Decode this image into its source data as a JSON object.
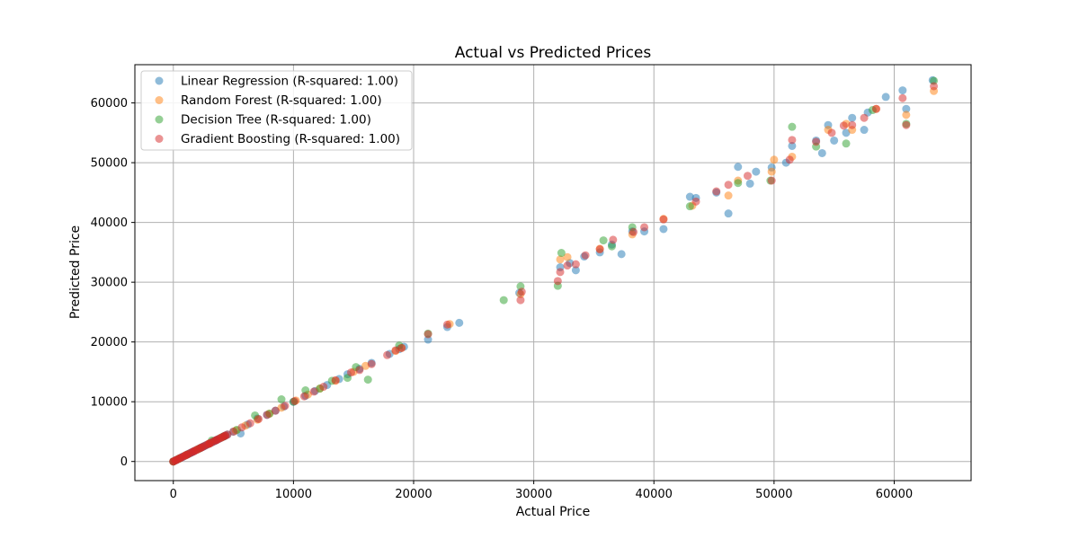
{
  "chart_data": {
    "type": "scatter",
    "title": "Actual vs Predicted Prices",
    "xlabel": "Actual Price",
    "ylabel": "Predicted Price",
    "xlim": [
      -3200,
      66400
    ],
    "ylim": [
      -3200,
      66400
    ],
    "xticks": [
      0,
      10000,
      20000,
      30000,
      40000,
      50000,
      60000
    ],
    "yticks": [
      0,
      10000,
      20000,
      30000,
      40000,
      50000,
      60000
    ],
    "grid": true,
    "legend_position": "top-left",
    "series": [
      {
        "name": "Linear Regression (R-squared: 1.00)",
        "color": "#1f77b4",
        "points": [
          [
            0,
            0
          ],
          [
            300,
            300
          ],
          [
            800,
            800
          ],
          [
            1500,
            1500
          ],
          [
            2500,
            2500
          ],
          [
            3500,
            3500
          ],
          [
            4200,
            4200
          ],
          [
            5000,
            5000
          ],
          [
            5600,
            4700
          ],
          [
            6200,
            6200
          ],
          [
            7000,
            7200
          ],
          [
            7800,
            7800
          ],
          [
            8500,
            8500
          ],
          [
            9200,
            9200
          ],
          [
            10000,
            10000
          ],
          [
            11000,
            11000
          ],
          [
            11800,
            11800
          ],
          [
            12800,
            12800
          ],
          [
            13800,
            13800
          ],
          [
            14500,
            14600
          ],
          [
            15500,
            15500
          ],
          [
            16500,
            16500
          ],
          [
            18000,
            18000
          ],
          [
            18800,
            18800
          ],
          [
            19200,
            19200
          ],
          [
            21200,
            20400
          ],
          [
            22800,
            22500
          ],
          [
            23800,
            23200
          ],
          [
            28800,
            28200
          ],
          [
            32200,
            32500
          ],
          [
            33000,
            33200
          ],
          [
            33500,
            32000
          ],
          [
            34200,
            34300
          ],
          [
            35500,
            35000
          ],
          [
            36500,
            36300
          ],
          [
            37300,
            34700
          ],
          [
            38200,
            38500
          ],
          [
            39200,
            38500
          ],
          [
            40800,
            38900
          ],
          [
            43000,
            44300
          ],
          [
            43500,
            44100
          ],
          [
            45200,
            45000
          ],
          [
            46200,
            41500
          ],
          [
            47000,
            49300
          ],
          [
            48000,
            46500
          ],
          [
            48500,
            48500
          ],
          [
            49800,
            49200
          ],
          [
            51000,
            50000
          ],
          [
            51500,
            52800
          ],
          [
            53500,
            53700
          ],
          [
            54000,
            51600
          ],
          [
            54500,
            56300
          ],
          [
            55000,
            53700
          ],
          [
            56000,
            55000
          ],
          [
            56500,
            57500
          ],
          [
            57500,
            55500
          ],
          [
            57800,
            58400
          ],
          [
            59300,
            61000
          ],
          [
            60700,
            62100
          ],
          [
            61000,
            59000
          ],
          [
            63200,
            63800
          ]
        ]
      },
      {
        "name": "Random Forest (R-squared: 1.00)",
        "color": "#ff7f0e",
        "points": [
          [
            0,
            0
          ],
          [
            400,
            400
          ],
          [
            1000,
            1000
          ],
          [
            2000,
            2000
          ],
          [
            3000,
            3000
          ],
          [
            4000,
            4000
          ],
          [
            5200,
            5200
          ],
          [
            6000,
            6000
          ],
          [
            7000,
            7000
          ],
          [
            8000,
            8000
          ],
          [
            9000,
            9000
          ],
          [
            10200,
            10200
          ],
          [
            11200,
            11200
          ],
          [
            12200,
            12200
          ],
          [
            13500,
            13500
          ],
          [
            15000,
            15000
          ],
          [
            16000,
            16000
          ],
          [
            18500,
            18500
          ],
          [
            19000,
            19000
          ],
          [
            23000,
            23000
          ],
          [
            28900,
            28000
          ],
          [
            32200,
            33800
          ],
          [
            32800,
            34200
          ],
          [
            35500,
            35600
          ],
          [
            38200,
            38000
          ],
          [
            40800,
            40600
          ],
          [
            43200,
            42800
          ],
          [
            46200,
            44500
          ],
          [
            47000,
            47000
          ],
          [
            49800,
            48500
          ],
          [
            50000,
            50500
          ],
          [
            51500,
            51000
          ],
          [
            54500,
            55500
          ],
          [
            56000,
            56500
          ],
          [
            56500,
            55500
          ],
          [
            58500,
            59000
          ],
          [
            61000,
            58000
          ],
          [
            63300,
            62000
          ]
        ]
      },
      {
        "name": "Decision Tree (R-squared: 1.00)",
        "color": "#2ca02c",
        "points": [
          [
            0,
            0
          ],
          [
            500,
            500
          ],
          [
            1200,
            1200
          ],
          [
            2200,
            2200
          ],
          [
            3200,
            3500
          ],
          [
            4200,
            4200
          ],
          [
            5300,
            5300
          ],
          [
            6800,
            7700
          ],
          [
            8000,
            8000
          ],
          [
            9000,
            10400
          ],
          [
            10000,
            10000
          ],
          [
            11000,
            11900
          ],
          [
            12200,
            12200
          ],
          [
            13200,
            13500
          ],
          [
            14500,
            14000
          ],
          [
            15200,
            15800
          ],
          [
            16200,
            13700
          ],
          [
            18800,
            19400
          ],
          [
            21200,
            21400
          ],
          [
            27500,
            27000
          ],
          [
            28900,
            29300
          ],
          [
            32000,
            29400
          ],
          [
            32300,
            34900
          ],
          [
            35800,
            37000
          ],
          [
            36500,
            36000
          ],
          [
            38200,
            39200
          ],
          [
            43000,
            42700
          ],
          [
            47000,
            46600
          ],
          [
            49700,
            47000
          ],
          [
            51500,
            56000
          ],
          [
            53500,
            52700
          ],
          [
            56000,
            53200
          ],
          [
            58200,
            58800
          ],
          [
            61000,
            56500
          ],
          [
            63300,
            63700
          ]
        ]
      },
      {
        "name": "Gradient Boosting (R-squared: 1.00)",
        "color": "#d62728",
        "points": [
          [
            0,
            0
          ],
          [
            200,
            200
          ],
          [
            600,
            600
          ],
          [
            1100,
            1100
          ],
          [
            1700,
            1700
          ],
          [
            2300,
            2300
          ],
          [
            3000,
            3000
          ],
          [
            3600,
            3600
          ],
          [
            4300,
            4300
          ],
          [
            5000,
            5000
          ],
          [
            5700,
            5700
          ],
          [
            6400,
            6400
          ],
          [
            7100,
            7100
          ],
          [
            7800,
            7800
          ],
          [
            8500,
            8500
          ],
          [
            9300,
            9300
          ],
          [
            10100,
            10100
          ],
          [
            10900,
            10900
          ],
          [
            11700,
            11700
          ],
          [
            12500,
            12500
          ],
          [
            13500,
            13600
          ],
          [
            14800,
            14900
          ],
          [
            15500,
            15300
          ],
          [
            16500,
            16300
          ],
          [
            17800,
            17800
          ],
          [
            18500,
            18600
          ],
          [
            19000,
            19000
          ],
          [
            21200,
            21300
          ],
          [
            22800,
            22900
          ],
          [
            28900,
            27000
          ],
          [
            29000,
            28400
          ],
          [
            32000,
            30200
          ],
          [
            32200,
            31700
          ],
          [
            32800,
            32800
          ],
          [
            33500,
            33000
          ],
          [
            34300,
            34500
          ],
          [
            35500,
            35500
          ],
          [
            36600,
            37100
          ],
          [
            38300,
            38400
          ],
          [
            39200,
            39200
          ],
          [
            40800,
            40500
          ],
          [
            43500,
            43500
          ],
          [
            45200,
            45200
          ],
          [
            46200,
            46300
          ],
          [
            47800,
            47800
          ],
          [
            49800,
            47000
          ],
          [
            51300,
            50500
          ],
          [
            51500,
            53800
          ],
          [
            53500,
            53500
          ],
          [
            54800,
            55000
          ],
          [
            55800,
            56200
          ],
          [
            56500,
            56300
          ],
          [
            57500,
            57500
          ],
          [
            58500,
            59000
          ],
          [
            60700,
            60800
          ],
          [
            61000,
            56300
          ],
          [
            63300,
            62800
          ]
        ]
      }
    ]
  }
}
